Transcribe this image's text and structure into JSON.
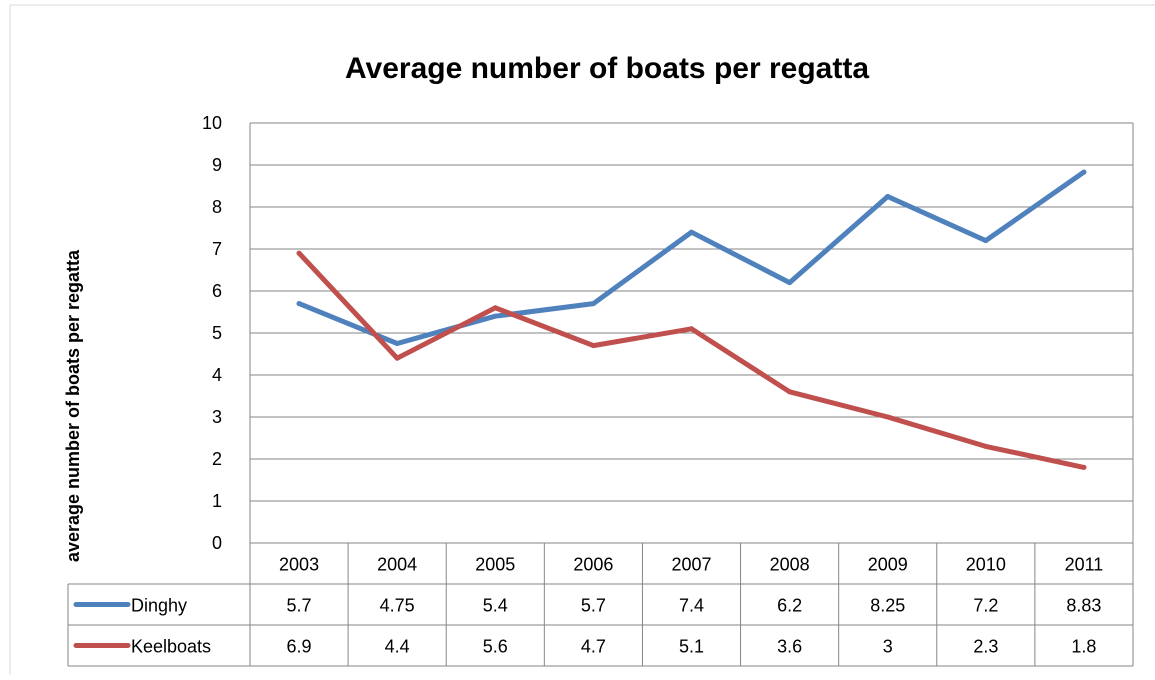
{
  "chart_data": {
    "type": "line",
    "title": "Average number of boats per regatta",
    "xlabel": "",
    "ylabel": "average number of  boats per regatta",
    "categories": [
      "2003",
      "2004",
      "2005",
      "2006",
      "2007",
      "2008",
      "2009",
      "2010",
      "2011"
    ],
    "ylim": [
      0,
      10
    ],
    "yticks": [
      "0",
      "1",
      "2",
      "3",
      "4",
      "5",
      "6",
      "7",
      "8",
      "9",
      "10"
    ],
    "grid": true,
    "legend": "data-table",
    "series": [
      {
        "name": "Dinghy",
        "color": "#4F81BD",
        "values": [
          5.7,
          4.75,
          5.4,
          5.7,
          7.4,
          6.2,
          8.25,
          7.2,
          8.83
        ],
        "labels": [
          "5.7",
          "4.75",
          "5.4",
          "5.7",
          "7.4",
          "6.2",
          "8.25",
          "7.2",
          "8.83"
        ]
      },
      {
        "name": "Keelboats",
        "color": "#C0504D",
        "values": [
          6.9,
          4.4,
          5.6,
          4.7,
          5.1,
          3.6,
          3,
          2.3,
          1.8
        ],
        "labels": [
          "6.9",
          "4.4",
          "5.6",
          "4.7",
          "5.1",
          "3.6",
          "3",
          "2.3",
          "1.8"
        ]
      }
    ]
  }
}
